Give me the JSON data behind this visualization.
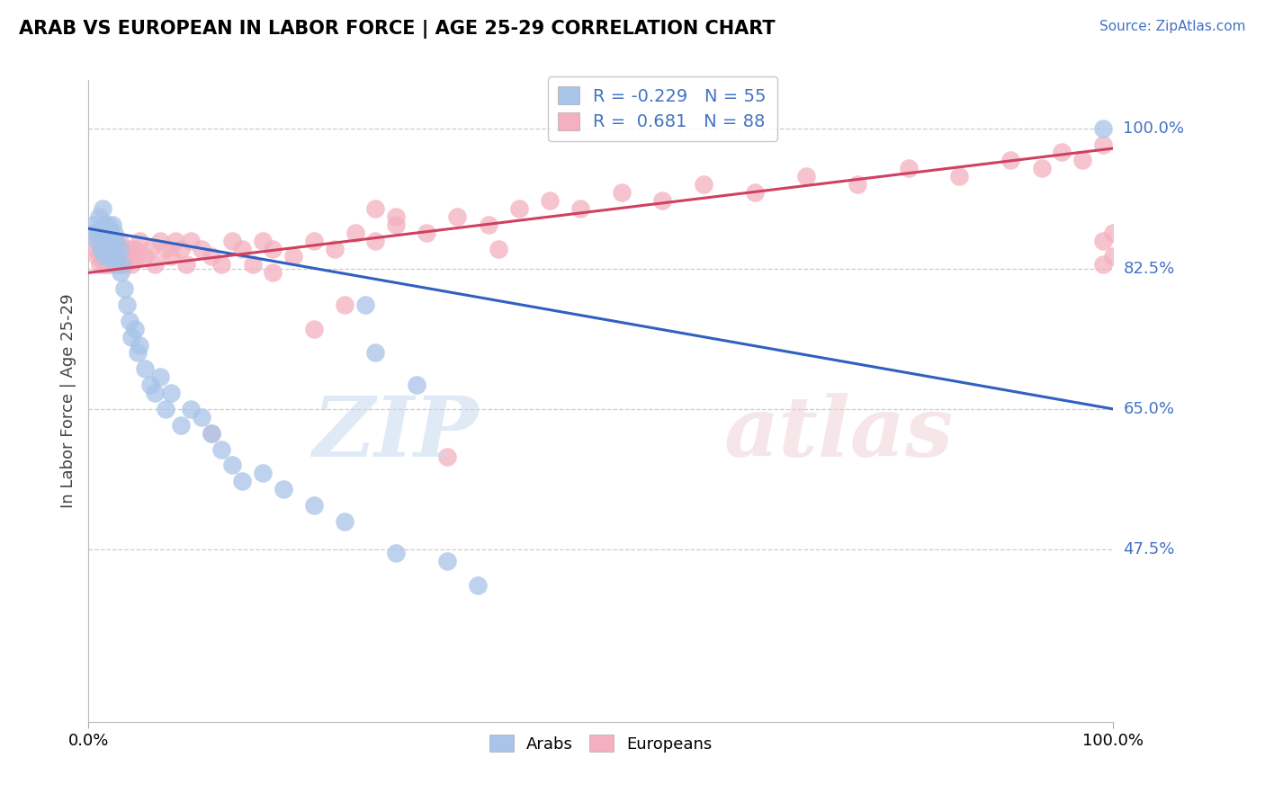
{
  "title": "ARAB VS EUROPEAN IN LABOR FORCE | AGE 25-29 CORRELATION CHART",
  "source": "Source: ZipAtlas.com",
  "ylabel": "In Labor Force | Age 25-29",
  "arab_color": "#a8c4e8",
  "european_color": "#f4b0c0",
  "arab_line_color": "#3060c0",
  "european_line_color": "#d04060",
  "arab_R": -0.229,
  "arab_N": 55,
  "european_R": 0.681,
  "european_N": 88,
  "legend_color": "#4472c4",
  "xlim": [
    0.0,
    1.0
  ],
  "ylim": [
    0.26,
    1.06
  ],
  "ytick_values": [
    1.0,
    0.825,
    0.65,
    0.475
  ],
  "ytick_labels": [
    "100.0%",
    "82.5%",
    "65.0%",
    "47.5%"
  ],
  "arab_scatter_x": [
    0.005,
    0.007,
    0.008,
    0.01,
    0.012,
    0.014,
    0.015,
    0.015,
    0.016,
    0.017,
    0.018,
    0.019,
    0.02,
    0.02,
    0.021,
    0.022,
    0.023,
    0.025,
    0.026,
    0.027,
    0.028,
    0.03,
    0.031,
    0.033,
    0.035,
    0.037,
    0.04,
    0.042,
    0.045,
    0.048,
    0.05,
    0.055,
    0.06,
    0.065,
    0.07,
    0.075,
    0.08,
    0.09,
    0.1,
    0.11,
    0.12,
    0.13,
    0.14,
    0.15,
    0.17,
    0.19,
    0.22,
    0.25,
    0.28,
    0.32,
    0.35,
    0.38,
    0.27,
    0.3,
    0.99
  ],
  "arab_scatter_y": [
    0.88,
    0.87,
    0.86,
    0.89,
    0.85,
    0.9,
    0.88,
    0.84,
    0.87,
    0.86,
    0.85,
    0.88,
    0.87,
    0.84,
    0.86,
    0.85,
    0.88,
    0.87,
    0.83,
    0.86,
    0.84,
    0.85,
    0.82,
    0.83,
    0.8,
    0.78,
    0.76,
    0.74,
    0.75,
    0.72,
    0.73,
    0.7,
    0.68,
    0.67,
    0.69,
    0.65,
    0.67,
    0.63,
    0.65,
    0.64,
    0.62,
    0.6,
    0.58,
    0.56,
    0.57,
    0.55,
    0.53,
    0.51,
    0.72,
    0.68,
    0.46,
    0.43,
    0.78,
    0.47,
    1.0
  ],
  "european_scatter_x": [
    0.005,
    0.007,
    0.008,
    0.01,
    0.011,
    0.012,
    0.013,
    0.014,
    0.015,
    0.016,
    0.017,
    0.018,
    0.019,
    0.02,
    0.021,
    0.022,
    0.023,
    0.024,
    0.025,
    0.026,
    0.027,
    0.028,
    0.029,
    0.03,
    0.032,
    0.034,
    0.036,
    0.038,
    0.04,
    0.042,
    0.045,
    0.048,
    0.05,
    0.055,
    0.06,
    0.065,
    0.07,
    0.075,
    0.08,
    0.085,
    0.09,
    0.095,
    0.1,
    0.11,
    0.12,
    0.13,
    0.14,
    0.15,
    0.16,
    0.17,
    0.18,
    0.2,
    0.22,
    0.24,
    0.26,
    0.28,
    0.3,
    0.33,
    0.36,
    0.39,
    0.42,
    0.45,
    0.48,
    0.52,
    0.56,
    0.6,
    0.65,
    0.7,
    0.75,
    0.8,
    0.85,
    0.9,
    0.93,
    0.95,
    0.97,
    0.99,
    0.99,
    0.99,
    1.0,
    1.0,
    0.12,
    0.3,
    0.18,
    0.25,
    0.35,
    0.22,
    0.4,
    0.28
  ],
  "european_scatter_y": [
    0.87,
    0.85,
    0.84,
    0.86,
    0.83,
    0.85,
    0.84,
    0.86,
    0.83,
    0.85,
    0.84,
    0.83,
    0.86,
    0.85,
    0.84,
    0.83,
    0.85,
    0.84,
    0.86,
    0.83,
    0.85,
    0.84,
    0.83,
    0.86,
    0.85,
    0.84,
    0.83,
    0.85,
    0.84,
    0.83,
    0.85,
    0.84,
    0.86,
    0.84,
    0.85,
    0.83,
    0.86,
    0.85,
    0.84,
    0.86,
    0.85,
    0.83,
    0.86,
    0.85,
    0.84,
    0.83,
    0.86,
    0.85,
    0.83,
    0.86,
    0.85,
    0.84,
    0.86,
    0.85,
    0.87,
    0.86,
    0.88,
    0.87,
    0.89,
    0.88,
    0.9,
    0.91,
    0.9,
    0.92,
    0.91,
    0.93,
    0.92,
    0.94,
    0.93,
    0.95,
    0.94,
    0.96,
    0.95,
    0.97,
    0.96,
    0.98,
    0.83,
    0.86,
    0.84,
    0.87,
    0.62,
    0.89,
    0.82,
    0.78,
    0.59,
    0.75,
    0.85,
    0.9
  ]
}
